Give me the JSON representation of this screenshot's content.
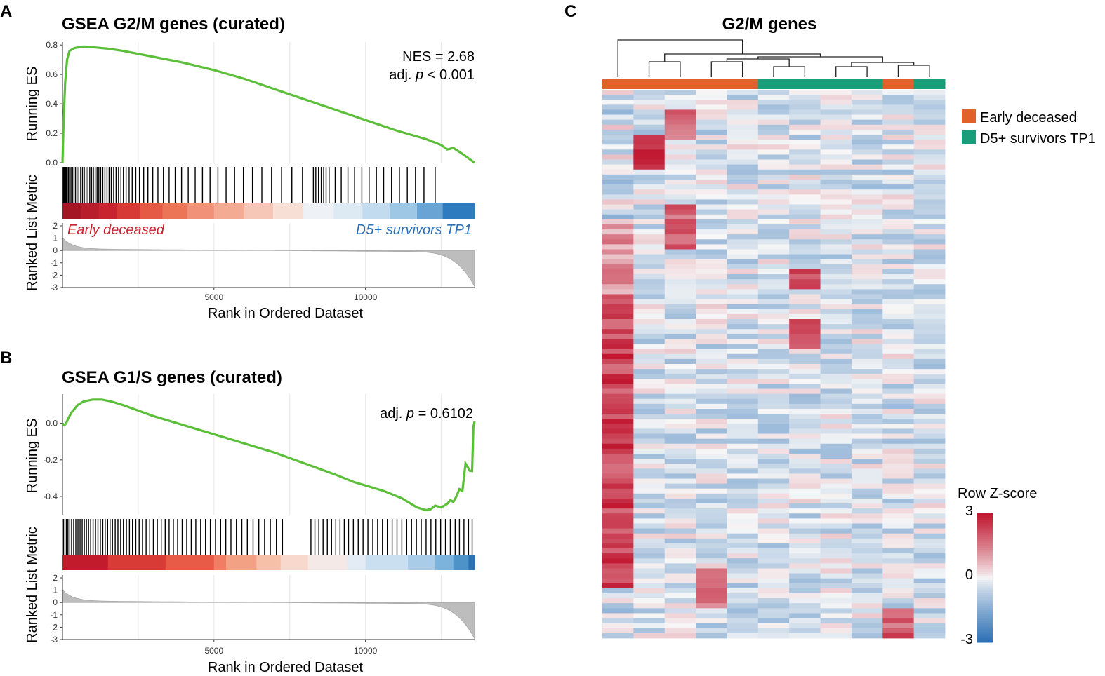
{
  "colors": {
    "es_line": "#5cbf3a",
    "early": "#e0612a",
    "survivor": "#1a9e7a",
    "heat_high": "#c0152e",
    "heat_mid": "#f7f7f7",
    "heat_low": "#2b6fb5",
    "label_red": "#c8202e",
    "label_blue": "#2b6fb5",
    "grey_fill": "#bdbdbd"
  },
  "panels": {
    "a": {
      "letter": "A"
    },
    "b": {
      "letter": "B"
    },
    "c": {
      "letter": "C"
    }
  },
  "chart_data": [
    {
      "id": "A",
      "type": "line",
      "title": "GSEA G2/M genes (curated)",
      "xlabel": "Rank in Ordered Dataset",
      "ylabel": "Running ES",
      "ylabel_bottom": "Ranked List Metric",
      "xlim": [
        0,
        13600
      ],
      "ylim": [
        0,
        0.82
      ],
      "x_ticks": [
        5000,
        10000
      ],
      "y_ticks": [
        0.0,
        0.2,
        0.4,
        0.6,
        0.8
      ],
      "y_tick_labels": [
        "0.0",
        "0.2",
        "0.4",
        "0.6",
        "0.8"
      ],
      "metric_ticks": [
        2,
        1,
        0,
        -1,
        -2,
        -3
      ],
      "metric_tick_labels": [
        "2",
        "1",
        "0",
        "-1",
        "-2",
        "-3"
      ],
      "metric_range": [
        -3,
        2
      ],
      "stat_line1": "NES = 2.68",
      "stat_line2_prefix": "adj. ",
      "stat_line2_p": "p",
      "stat_line2_suffix": " < 0.001",
      "label_left": "Early deceased",
      "label_right": "D5+ survivors TP1",
      "running_es": [
        [
          0,
          0.0
        ],
        [
          40,
          0.3
        ],
        [
          90,
          0.55
        ],
        [
          150,
          0.7
        ],
        [
          230,
          0.76
        ],
        [
          400,
          0.78
        ],
        [
          700,
          0.79
        ],
        [
          1000,
          0.785
        ],
        [
          1500,
          0.775
        ],
        [
          2000,
          0.76
        ],
        [
          3000,
          0.72
        ],
        [
          4000,
          0.68
        ],
        [
          5000,
          0.63
        ],
        [
          6000,
          0.57
        ],
        [
          7000,
          0.5
        ],
        [
          8000,
          0.43
        ],
        [
          9000,
          0.36
        ],
        [
          10000,
          0.29
        ],
        [
          11000,
          0.22
        ],
        [
          12000,
          0.16
        ],
        [
          12500,
          0.12
        ],
        [
          12700,
          0.09
        ],
        [
          12900,
          0.1
        ],
        [
          13200,
          0.06
        ],
        [
          13600,
          0.0
        ]
      ],
      "hits": [
        20,
        40,
        60,
        80,
        100,
        130,
        160,
        200,
        240,
        280,
        330,
        380,
        430,
        480,
        540,
        600,
        660,
        720,
        780,
        840,
        900,
        960,
        1020,
        1080,
        1140,
        1200,
        1260,
        1330,
        1400,
        1470,
        1540,
        1610,
        1690,
        1770,
        1850,
        1930,
        2010,
        2100,
        2200,
        2300,
        2420,
        2540,
        2680,
        2820,
        2980,
        3150,
        3330,
        3520,
        3720,
        3930,
        4150,
        4380,
        4620,
        4870,
        5130,
        5400,
        5680,
        5970,
        6270,
        6580,
        6900,
        7230,
        7570,
        7920,
        8280,
        8360,
        8450,
        8540,
        8620,
        8700,
        8800,
        9000,
        9200,
        9420,
        9640,
        9880,
        10120,
        10360,
        10600,
        10860,
        11120,
        11380,
        11650,
        11930,
        12300
      ],
      "bar_bins": [
        [
          "#a51624",
          0,
          600
        ],
        [
          "#b81d2b",
          600,
          1200
        ],
        [
          "#c8242f",
          1200,
          1800
        ],
        [
          "#d73a34",
          1800,
          2550
        ],
        [
          "#e45a45",
          2550,
          3300
        ],
        [
          "#ec7558",
          3300,
          4100
        ],
        [
          "#f19278",
          4100,
          5000
        ],
        [
          "#f4ab94",
          5000,
          6000
        ],
        [
          "#f6c7b7",
          6000,
          6950
        ],
        [
          "#f8dfd6",
          6950,
          7950
        ],
        [
          "#eef1f6",
          7950,
          8950
        ],
        [
          "#dde9f3",
          8950,
          9900
        ],
        [
          "#c3dbee",
          9900,
          10800
        ],
        [
          "#9ec7e6",
          10800,
          11700
        ],
        [
          "#6aa4d4",
          11700,
          12550
        ],
        [
          "#2e7bc0",
          12550,
          13600
        ]
      ]
    },
    {
      "id": "B",
      "type": "line",
      "title": "GSEA G1/S genes (curated)",
      "xlabel": "Rank in Ordered Dataset",
      "ylabel": "Running ES",
      "ylabel_bottom": "Ranked List Metric",
      "xlim": [
        0,
        13600
      ],
      "ylim": [
        -0.5,
        0.16
      ],
      "x_ticks": [
        5000,
        10000
      ],
      "y_ticks": [
        0.0,
        -0.2,
        -0.4
      ],
      "y_tick_labels": [
        "0.0",
        "-0.2",
        "-0.4"
      ],
      "metric_ticks": [
        2,
        1,
        0,
        -1,
        -2,
        -3
      ],
      "metric_tick_labels": [
        "2",
        "1",
        "0",
        "-1",
        "-2",
        "-3"
      ],
      "metric_range": [
        -3,
        2
      ],
      "stat_line2_prefix": "adj. ",
      "stat_line2_p": "p",
      "stat_line2_suffix": " = 0.6102",
      "running_es": [
        [
          0,
          0.0
        ],
        [
          60,
          -0.01
        ],
        [
          120,
          0.0
        ],
        [
          200,
          0.03
        ],
        [
          300,
          0.06
        ],
        [
          500,
          0.1
        ],
        [
          700,
          0.12
        ],
        [
          1000,
          0.13
        ],
        [
          1300,
          0.13
        ],
        [
          1600,
          0.12
        ],
        [
          2000,
          0.1
        ],
        [
          2500,
          0.07
        ],
        [
          3000,
          0.04
        ],
        [
          4000,
          -0.01
        ],
        [
          5000,
          -0.06
        ],
        [
          6000,
          -0.11
        ],
        [
          7000,
          -0.16
        ],
        [
          8000,
          -0.22
        ],
        [
          9000,
          -0.28
        ],
        [
          9600,
          -0.32
        ],
        [
          10000,
          -0.34
        ],
        [
          10600,
          -0.37
        ],
        [
          11200,
          -0.41
        ],
        [
          11700,
          -0.46
        ],
        [
          12000,
          -0.475
        ],
        [
          12150,
          -0.47
        ],
        [
          12300,
          -0.45
        ],
        [
          12500,
          -0.46
        ],
        [
          12700,
          -0.44
        ],
        [
          12800,
          -0.42
        ],
        [
          12900,
          -0.43
        ],
        [
          13000,
          -0.4
        ],
        [
          13100,
          -0.36
        ],
        [
          13200,
          -0.37
        ],
        [
          13300,
          -0.22
        ],
        [
          13450,
          -0.26
        ],
        [
          13520,
          -0.26
        ],
        [
          13560,
          -0.02
        ],
        [
          13600,
          0.01
        ]
      ],
      "hits": [
        30,
        80,
        130,
        180,
        240,
        300,
        370,
        440,
        510,
        580,
        650,
        720,
        790,
        860,
        930,
        1010,
        1090,
        1170,
        1250,
        1330,
        1410,
        1490,
        1570,
        1650,
        1740,
        1830,
        1920,
        2010,
        2110,
        2210,
        2310,
        2420,
        2530,
        2640,
        2760,
        2880,
        3000,
        3130,
        3260,
        3390,
        3520,
        3660,
        3800,
        3950,
        4100,
        4250,
        4400,
        4560,
        4720,
        4880,
        5050,
        5220,
        5390,
        5560,
        5740,
        5920,
        6100,
        6290,
        6480,
        6670,
        6860,
        7060,
        7260,
        8200,
        8330,
        8460,
        8600,
        8740,
        8880,
        9020,
        9160,
        9300,
        9440,
        9600,
        9760,
        9920,
        10080,
        10240,
        10400,
        10560,
        10720,
        10880,
        11040,
        11200,
        11360,
        11520,
        11680,
        11840,
        12000,
        12160,
        12320,
        12480,
        12640,
        12800,
        12960,
        13100,
        13250,
        13400,
        13520
      ]
    },
    {
      "id": "C",
      "type": "heatmap",
      "title": "G2/M genes",
      "legend_early": "Early deceased",
      "legend_survivor": "D5+ survivors TP1",
      "colorbar_title": "Row Z-score",
      "colorbar_ticks": [
        3,
        0,
        -3
      ],
      "colorbar_tick_labels": [
        "3",
        "0",
        "-3"
      ],
      "column_groups": [
        "early",
        "early",
        "early",
        "early",
        "early",
        "survivor",
        "survivor",
        "survivor",
        "survivor",
        "early",
        "survivor"
      ],
      "n_rows": 110,
      "value_range": [
        -3,
        3
      ]
    }
  ]
}
